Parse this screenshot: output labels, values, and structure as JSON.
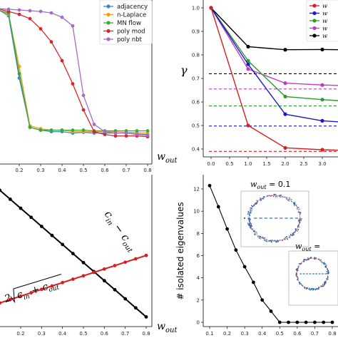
{
  "chart_data": [
    {
      "panel": "top-left",
      "type": "line",
      "xlabel": "w_out",
      "xlim": [
        0.05,
        0.82
      ],
      "ylim": [
        0,
        1.05
      ],
      "xticks": [
        "0.2",
        "0.3",
        "0.4",
        "0.5",
        "0.6",
        "0.7",
        "0.8"
      ],
      "x": [
        0.05,
        0.1,
        0.15,
        0.2,
        0.25,
        0.3,
        0.35,
        0.4,
        0.45,
        0.5,
        0.55,
        0.6,
        0.65,
        0.7,
        0.75,
        0.8
      ],
      "legend_position": "top-right",
      "series": [
        {
          "name": "adjacency",
          "color": "#3a87c4",
          "values": [
            1.0,
            0.995,
            0.95,
            0.52,
            0.18,
            0.16,
            0.15,
            0.15,
            0.14,
            0.145,
            0.14,
            0.14,
            0.14,
            0.14,
            0.135,
            0.13
          ]
        },
        {
          "name": "n-Laplace",
          "color": "#f5a020",
          "values": [
            1.0,
            0.995,
            0.96,
            0.6,
            0.19,
            0.17,
            0.16,
            0.16,
            0.15,
            0.15,
            0.15,
            0.15,
            0.15,
            0.145,
            0.145,
            0.14
          ]
        },
        {
          "name": "MN flow",
          "color": "#3aaa35",
          "values": [
            1.0,
            0.99,
            0.97,
            0.55,
            0.18,
            0.16,
            0.16,
            0.16,
            0.16,
            0.16,
            0.155,
            0.155,
            0.155,
            0.155,
            0.155,
            0.155
          ]
        },
        {
          "name": "poly mod",
          "color": "#d62728",
          "values": [
            1.0,
            1.0,
            0.98,
            0.96,
            0.93,
            0.86,
            0.77,
            0.64,
            0.48,
            0.3,
            0.15,
            0.13,
            0.12,
            0.12,
            0.12,
            0.115
          ]
        },
        {
          "name": "poly nbt",
          "color": "#a56cc1",
          "values": [
            1.0,
            1.0,
            0.995,
            0.99,
            0.985,
            0.98,
            0.97,
            0.94,
            0.88,
            0.4,
            0.2,
            0.15,
            0.14,
            0.14,
            0.13,
            0.125
          ]
        }
      ]
    },
    {
      "panel": "top-right",
      "type": "line",
      "ylabel": "γ",
      "xlim": [
        -0.2,
        3.6
      ],
      "ylim": [
        0.38,
        1.02
      ],
      "xticks": [
        "0.0",
        "0.5",
        "1.0",
        "1.5",
        "2.0",
        "2.5",
        "3.0"
      ],
      "yticks": [
        "0.4",
        "0.5",
        "0.6",
        "0.7",
        "0.8",
        "0.9",
        "1.0"
      ],
      "x": [
        0,
        1,
        2,
        3,
        3.5
      ],
      "legend_position": "top-right",
      "legend_entries": [
        "w",
        "w",
        "w",
        "w",
        "w"
      ],
      "series": [
        {
          "color": "#000000",
          "values": [
            1.0,
            0.835,
            0.822,
            0.823,
            0.822
          ],
          "dashed_level": 0.72
        },
        {
          "color": "#c13cc1",
          "values": [
            1.0,
            0.74,
            0.68,
            0.672,
            0.67
          ],
          "dashed_level": 0.655
        },
        {
          "color": "#2a9d2a",
          "values": [
            1.0,
            0.775,
            0.623,
            0.61,
            0.605
          ],
          "dashed_level": 0.583
        },
        {
          "color": "#1a1ac8",
          "values": [
            1.0,
            0.76,
            0.548,
            0.52,
            0.515
          ],
          "dashed_level": 0.498
        },
        {
          "color": "#d62020",
          "values": [
            1.0,
            0.5,
            0.405,
            0.397,
            0.395
          ],
          "dashed_level": 0.39
        }
      ]
    },
    {
      "panel": "bottom-left",
      "type": "line",
      "xlabel": "w_out",
      "xlim": [
        0.05,
        0.82
      ],
      "ylim": [
        0,
        2.1
      ],
      "xticks": [
        "0.2",
        "0.3",
        "0.4",
        "0.5",
        "0.6",
        "0.7",
        "0.8"
      ],
      "x": [
        0.05,
        0.1,
        0.15,
        0.2,
        0.25,
        0.3,
        0.35,
        0.4,
        0.45,
        0.5,
        0.55,
        0.6,
        0.65,
        0.7,
        0.75,
        0.8
      ],
      "annotations": [
        "c_in − c_out",
        "2√(c_in + c_out)"
      ],
      "series": [
        {
          "label": "c_in − c_out",
          "color": "#000000",
          "values": [
            1.9,
            1.78,
            1.66,
            1.54,
            1.42,
            1.3,
            1.18,
            1.06,
            0.94,
            0.82,
            0.7,
            0.58,
            0.46,
            0.34,
            0.22,
            0.1
          ]
        },
        {
          "label": "2√(c_in + c_out)",
          "color": "#d62020",
          "values": [
            0.24,
            0.285,
            0.33,
            0.375,
            0.42,
            0.465,
            0.51,
            0.555,
            0.6,
            0.645,
            0.69,
            0.735,
            0.78,
            0.825,
            0.87,
            0.915
          ]
        }
      ]
    },
    {
      "panel": "bottom-right",
      "type": "line",
      "ylabel": "# isolated eigenvalues",
      "xlim": [
        0.06,
        0.82
      ],
      "ylim": [
        -0.3,
        13.0
      ],
      "xticks": [
        "0.1",
        "0.2",
        "0.3",
        "0.4",
        "0.5",
        "0.6",
        "0.7",
        "0.8"
      ],
      "yticks": [
        "0",
        "2",
        "4",
        "6",
        "8",
        "10",
        "12"
      ],
      "x": [
        0.1,
        0.15,
        0.2,
        0.25,
        0.3,
        0.35,
        0.4,
        0.45,
        0.5,
        0.55,
        0.6,
        0.65,
        0.7,
        0.75,
        0.8
      ],
      "series": [
        {
          "color": "#000000",
          "values": [
            12.3,
            10.4,
            8.4,
            6.5,
            5.0,
            3.6,
            2.0,
            1.0,
            0.0,
            0.0,
            0.0,
            0.0,
            0.0,
            0.0,
            0.0
          ]
        }
      ],
      "insets": [
        {
          "label": "w_out = 0.1"
        },
        {
          "label": "w_out ="
        }
      ]
    }
  ]
}
